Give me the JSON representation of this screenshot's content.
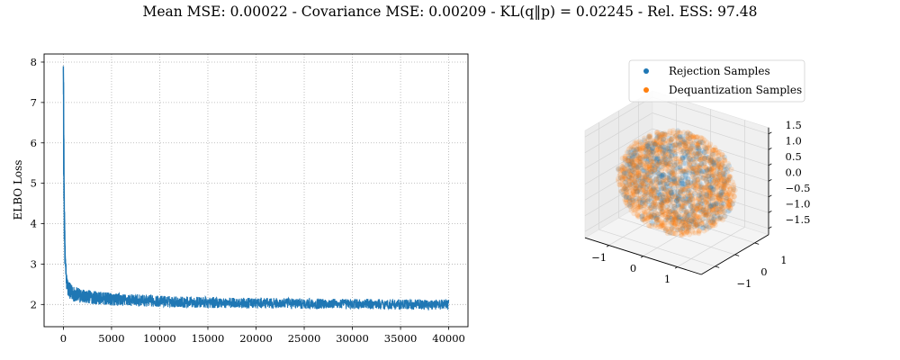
{
  "figure": {
    "title": "Mean MSE: 0.00022 - Covariance MSE: 0.00209 - KL(q‖p) = 0.02245 - Rel. ESS: 97.48"
  },
  "colors": {
    "line": "#1f77b4",
    "rejection": "#1f77b4",
    "dequantization": "#ff7f0e",
    "grid": "#b0b0b0",
    "pane": "#f2f2f2"
  },
  "chart_data": [
    {
      "type": "line",
      "title": "",
      "xlabel": "",
      "ylabel": "ELBO Loss",
      "xlim": [
        -2000,
        42000
      ],
      "ylim": [
        1.45,
        8.2
      ],
      "xticks": [
        0,
        5000,
        10000,
        15000,
        20000,
        25000,
        30000,
        35000,
        40000
      ],
      "yticks": [
        2,
        3,
        4,
        5,
        6,
        7,
        8
      ],
      "grid": true,
      "grid_style": "dotted",
      "series": [
        {
          "x": [
            0,
            20,
            50,
            80,
            120,
            160,
            200,
            260,
            320,
            400,
            500,
            650,
            800,
            1000,
            1300,
            1700,
            2200,
            3000,
            4000,
            5000,
            6500,
            8000,
            10000,
            12500,
            15000,
            17500,
            20000,
            22500,
            25000,
            27500,
            30000,
            32500,
            35000,
            37500,
            40000
          ],
          "values": [
            7.85,
            7.4,
            6.2,
            5.0,
            4.1,
            3.5,
            3.1,
            2.85,
            2.6,
            2.45,
            2.4,
            2.35,
            2.3,
            2.28,
            2.25,
            2.22,
            2.2,
            2.18,
            2.15,
            2.13,
            2.11,
            2.1,
            2.08,
            2.06,
            2.05,
            2.04,
            2.03,
            2.03,
            2.02,
            2.02,
            2.01,
            2.01,
            2.0,
            2.0,
            2.0
          ],
          "noise_amplitude": [
            0.0,
            0.0,
            0.3,
            0.5,
            0.45,
            0.35,
            0.3,
            0.28,
            0.25,
            0.22,
            0.22,
            0.2,
            0.2,
            0.2,
            0.19,
            0.18,
            0.18,
            0.17,
            0.16,
            0.16,
            0.15,
            0.15,
            0.14,
            0.14,
            0.14,
            0.13,
            0.13,
            0.13,
            0.13,
            0.13,
            0.13,
            0.13,
            0.13,
            0.13,
            0.13
          ]
        }
      ]
    },
    {
      "type": "scatter",
      "projection": "3d",
      "title": "",
      "xlim": [
        -1.7,
        1.7
      ],
      "ylim": [
        -1.7,
        1.7
      ],
      "zlim": [
        -1.7,
        1.7
      ],
      "xticks": [
        -1,
        0,
        1
      ],
      "yticks": [
        -1,
        0,
        1
      ],
      "zticks": [
        -1.5,
        -1.0,
        -0.5,
        0.0,
        0.5,
        1.0,
        1.5
      ],
      "zticklabels": [
        "−1.5",
        "−1.0",
        "−0.5",
        "0.0",
        "0.5",
        "1.0",
        "1.5"
      ],
      "xticklabels": [
        "−1",
        "0",
        "1"
      ],
      "yticklabels": [
        "−1",
        "0",
        "1"
      ],
      "grid": true,
      "legend_position": "top-center",
      "series": [
        {
          "name": "Rejection Samples",
          "distribution": "uniform ball",
          "radius": 1.5,
          "count": 700,
          "alpha": 0.15
        },
        {
          "name": "Dequantization Samples",
          "distribution": "uniform ball, concentrated near surface",
          "radius": 1.5,
          "count": 1600,
          "alpha": 0.15
        }
      ]
    }
  ]
}
